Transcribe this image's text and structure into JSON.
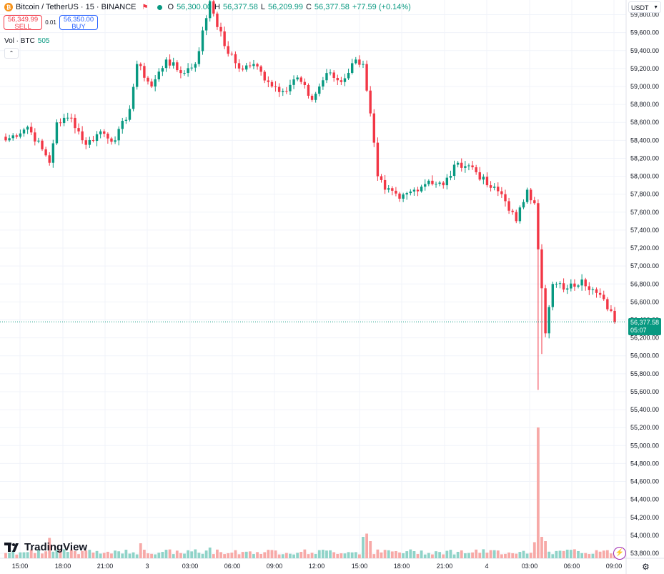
{
  "header": {
    "symbol_icon": "₿",
    "title": "Bitcoin / TetherUS · 15 · BINANCE",
    "open_label": "O",
    "open": "56,300.00",
    "high_label": "H",
    "high": "56,377.58",
    "low_label": "L",
    "low": "56,209.99",
    "close_label": "C",
    "close": "56,377.58",
    "change": "+77.59 (+0.14%)"
  },
  "trade": {
    "sell_price": "56,349.99",
    "sell_label": "SELL",
    "spread": "0.01",
    "buy_price": "56,350.00",
    "buy_label": "BUY"
  },
  "volume": {
    "label": "Vol · BTC",
    "value": "505"
  },
  "currency_selector": "USDT",
  "last_price": {
    "price": "56,377.58",
    "countdown": "05:07"
  },
  "brand": "TradingView",
  "colors": {
    "up": "#089981",
    "down": "#f23645",
    "up_volume": "#8fd3c8",
    "down_volume": "#f7a9a7",
    "grid": "#f0f3fa"
  },
  "chart_data": {
    "type": "candlestick",
    "y_ticks": [
      53800,
      54000,
      54200,
      54400,
      54600,
      54800,
      55000,
      55200,
      55400,
      55600,
      55800,
      56000,
      56200,
      56400,
      56600,
      56800,
      57000,
      57200,
      57400,
      57600,
      57800,
      58000,
      58200,
      58400,
      58600,
      58800,
      59000,
      59200,
      59400,
      59600,
      59800
    ],
    "y_tick_labels": [
      "53,800.00",
      "54,000.00",
      "54,200.00",
      "54,400.00",
      "54,600.00",
      "54,800.00",
      "55,000.00",
      "55,200.00",
      "55,400.00",
      "55,600.00",
      "55,800.00",
      "56,000.00",
      "56,200.00",
      "56,400.00",
      "56,600.00",
      "56,800.00",
      "57,000.00",
      "57,200.00",
      "57,400.00",
      "57,600.00",
      "57,800.00",
      "58,000.00",
      "58,200.00",
      "58,400.00",
      "58,600.00",
      "58,800.00",
      "59,000.00",
      "59,200.00",
      "59,400.00",
      "59,600.00",
      "59,800.00"
    ],
    "x_tick_labels": [
      "15:00",
      "18:00",
      "21:00",
      "3",
      "03:00",
      "06:00",
      "09:00",
      "12:00",
      "15:00",
      "18:00",
      "21:00",
      "4",
      "03:00",
      "06:00",
      "09:00"
    ],
    "last_price": 56377.58,
    "key_points": [
      [
        0,
        58400
      ],
      [
        6,
        58550
      ],
      [
        10,
        58300
      ],
      [
        12,
        58150
      ],
      [
        14,
        58600
      ],
      [
        18,
        58650
      ],
      [
        22,
        58350
      ],
      [
        26,
        58500
      ],
      [
        30,
        58400
      ],
      [
        34,
        58750
      ],
      [
        36,
        59250
      ],
      [
        40,
        59000
      ],
      [
        44,
        59300
      ],
      [
        48,
        59150
      ],
      [
        52,
        59250
      ],
      [
        56,
        59950
      ],
      [
        60,
        59450
      ],
      [
        64,
        59200
      ],
      [
        68,
        59250
      ],
      [
        72,
        59050
      ],
      [
        76,
        58950
      ],
      [
        80,
        59100
      ],
      [
        84,
        58850
      ],
      [
        88,
        59150
      ],
      [
        92,
        59050
      ],
      [
        96,
        59300
      ],
      [
        98,
        59250
      ],
      [
        100,
        58700
      ],
      [
        102,
        58000
      ],
      [
        104,
        57850
      ],
      [
        108,
        57750
      ],
      [
        112,
        57850
      ],
      [
        116,
        57950
      ],
      [
        120,
        57900
      ],
      [
        124,
        58150
      ],
      [
        128,
        58100
      ],
      [
        132,
        57900
      ],
      [
        136,
        57800
      ],
      [
        140,
        57500
      ],
      [
        143,
        57850
      ],
      [
        145,
        57700
      ],
      [
        148,
        56250
      ],
      [
        150,
        56800
      ],
      [
        154,
        56750
      ],
      [
        158,
        56850
      ],
      [
        162,
        56700
      ],
      [
        166,
        56500
      ],
      [
        167,
        56377.58
      ]
    ],
    "volume_spikes": {
      "12": 1.9,
      "37": 1.4,
      "56": 1.0,
      "98": 2.0,
      "99": 2.3,
      "100": 1.6,
      "145": 1.5,
      "146": 12.2,
      "147": 2.0,
      "148": 1.6
    }
  }
}
